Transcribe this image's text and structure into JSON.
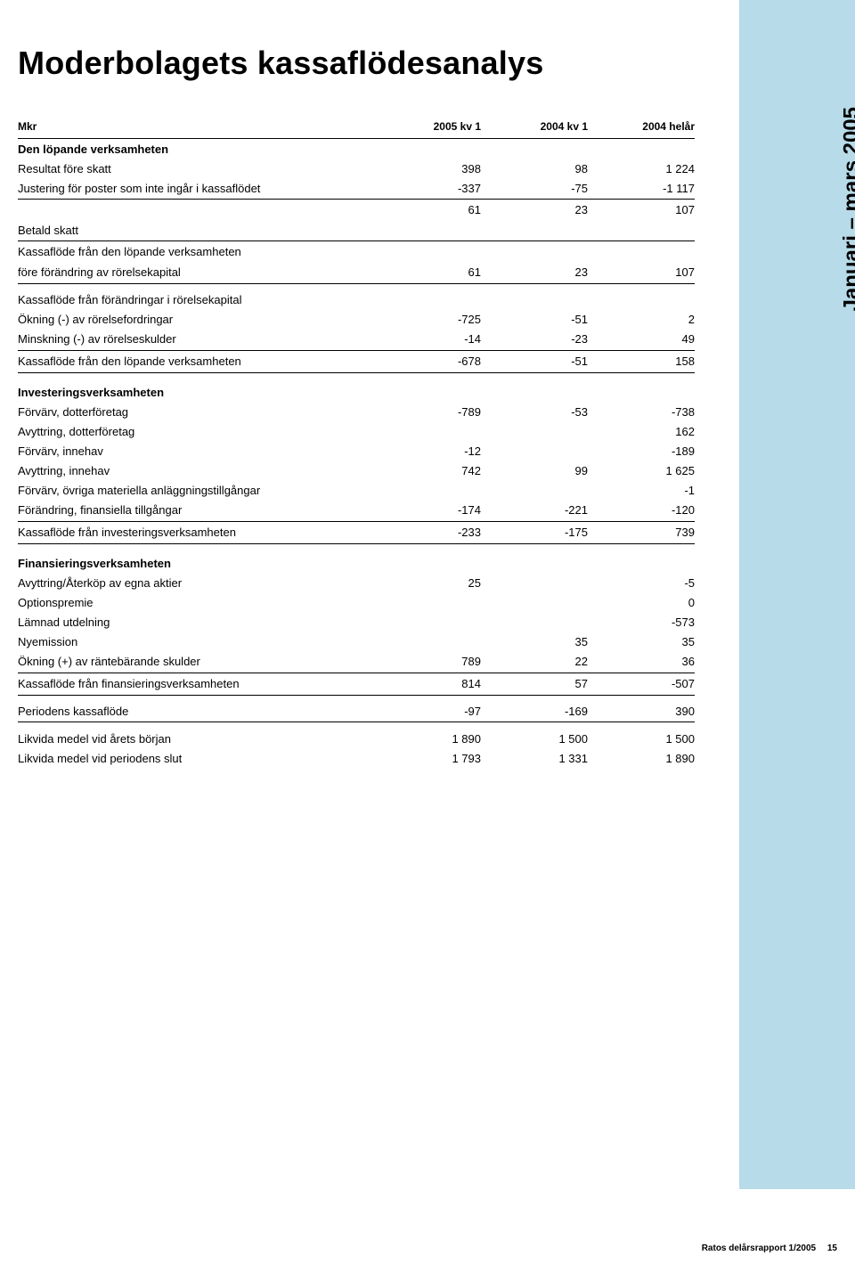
{
  "page": {
    "title": "Moderbolagets kassaflödesanalys",
    "side_label": "Januari – mars 2005",
    "footer_text": "Ratos delårsrapport 1/2005",
    "footer_page": "15",
    "sidebar_color": "#b7dbe8",
    "bg_color": "#ffffff"
  },
  "table": {
    "unit": "Mkr",
    "col1": "2005 kv 1",
    "col2": "2004 kv 1",
    "col3": "2004 helår",
    "sec1_title": "Den löpande verksamheten",
    "r1": {
      "label": "Resultat före skatt",
      "c1": "398",
      "c2": "98",
      "c3": "1 224"
    },
    "r2": {
      "label": "Justering för poster som inte ingår i kassaflödet",
      "c1": "-337",
      "c2": "-75",
      "c3": "-1 117"
    },
    "r3": {
      "label": "",
      "c1": "61",
      "c2": "23",
      "c3": "107"
    },
    "r4": {
      "label": "Betald skatt"
    },
    "r5l1": "Kassaflöde från den löpande verksamheten",
    "r5l2": "före förändring av rörelsekapital",
    "r5": {
      "c1": "61",
      "c2": "23",
      "c3": "107"
    },
    "r6": {
      "label": "Kassaflöde från förändringar i rörelsekapital"
    },
    "r7": {
      "label": "Ökning (-) av rörelsefordringar",
      "c1": "-725",
      "c2": "-51",
      "c3": "2"
    },
    "r8": {
      "label": "Minskning (-) av rörelseskulder",
      "c1": "-14",
      "c2": "-23",
      "c3": "49"
    },
    "r9": {
      "label": "Kassaflöde från den löpande verksamheten",
      "c1": "-678",
      "c2": "-51",
      "c3": "158"
    },
    "sec2_title": "Investeringsverksamheten",
    "r10": {
      "label": "Förvärv, dotterföretag",
      "c1": "-789",
      "c2": "-53",
      "c3": "-738"
    },
    "r11": {
      "label": "Avyttring, dotterföretag",
      "c3": "162"
    },
    "r12": {
      "label": "Förvärv, innehav",
      "c1": "-12",
      "c3": "-189"
    },
    "r13": {
      "label": "Avyttring, innehav",
      "c1": "742",
      "c2": "99",
      "c3": "1 625"
    },
    "r14": {
      "label": "Förvärv, övriga materiella anläggningstillgångar",
      "c3": "-1"
    },
    "r15": {
      "label": "Förändring, finansiella tillgångar",
      "c1": "-174",
      "c2": "-221",
      "c3": "-120"
    },
    "r16": {
      "label": "Kassaflöde från investeringsverksamheten",
      "c1": "-233",
      "c2": "-175",
      "c3": "739"
    },
    "sec3_title": "Finansieringsverksamheten",
    "r17": {
      "label": "Avyttring/Återköp av egna aktier",
      "c1": "25",
      "c3": "-5"
    },
    "r18": {
      "label": "Optionspremie",
      "c3": "0"
    },
    "r19": {
      "label": "Lämnad utdelning",
      "c3": "-573"
    },
    "r20": {
      "label": "Nyemission",
      "c2": "35",
      "c3": "35"
    },
    "r21": {
      "label": "Ökning (+) av räntebärande skulder",
      "c1": "789",
      "c2": "22",
      "c3": "36"
    },
    "r22": {
      "label": "Kassaflöde från finansieringsverksamheten",
      "c1": "814",
      "c2": "57",
      "c3": "-507"
    },
    "r23": {
      "label": "Periodens kassaflöde",
      "c1": "-97",
      "c2": "-169",
      "c3": "390"
    },
    "r24": {
      "label": "Likvida medel vid årets början",
      "c1": "1 890",
      "c2": "1 500",
      "c3": "1 500"
    },
    "r25": {
      "label": "Likvida medel vid periodens slut",
      "c1": "1 793",
      "c2": "1 331",
      "c3": "1 890"
    }
  }
}
